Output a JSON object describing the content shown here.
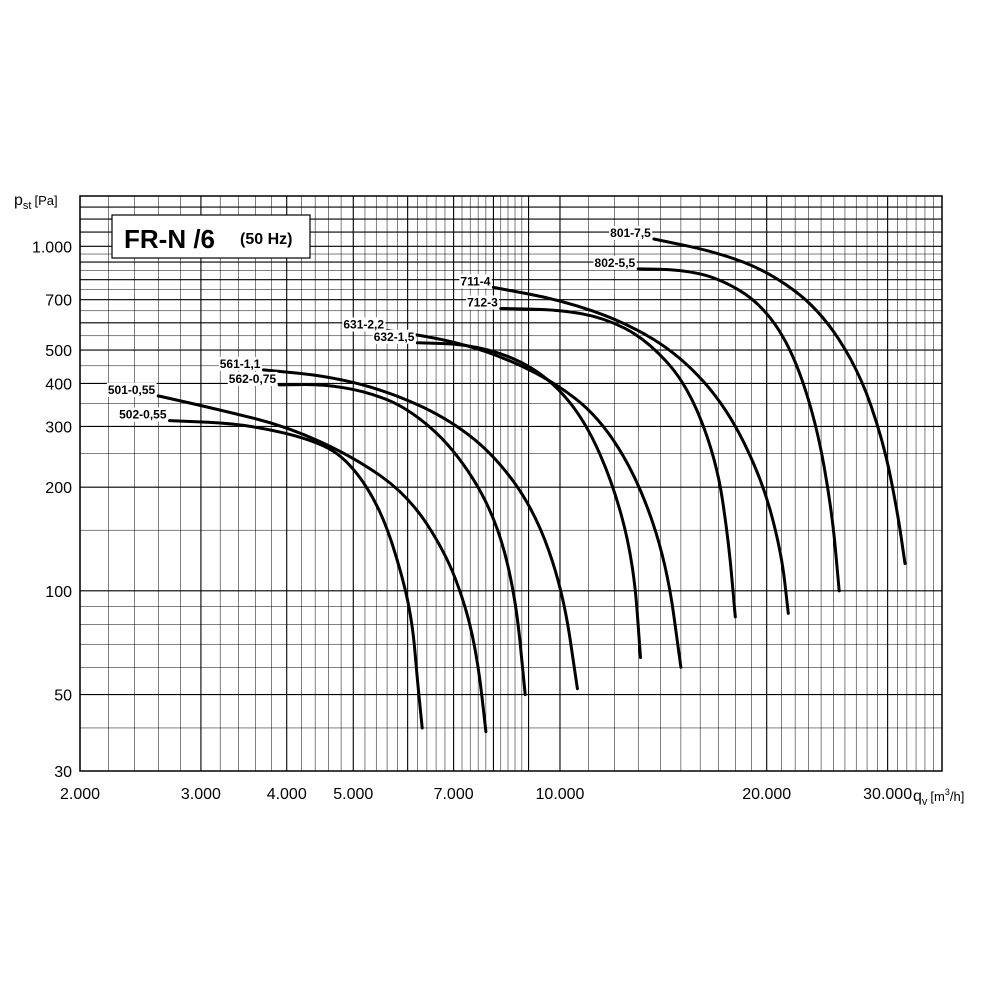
{
  "chart_data": {
    "type": "line",
    "title": "FR-N /6",
    "subtitle": "(50 Hz)",
    "ylabel_main": "p",
    "ylabel_sub": "st",
    "ylabel_unit": "[Pa]",
    "xlabel_main": "q",
    "xlabel_sub": "v",
    "xlabel_unit_pre": "[m",
    "xlabel_unit_sup": "3",
    "xlabel_unit_post": "/h]",
    "xscale": "log",
    "yscale": "log",
    "xlim": [
      2000,
      36000
    ],
    "ylim": [
      30,
      1400
    ],
    "grid": true,
    "xticks": [
      {
        "value": 2000,
        "label": "2.000"
      },
      {
        "value": 3000,
        "label": "3.000"
      },
      {
        "value": 4000,
        "label": "4.000"
      },
      {
        "value": 5000,
        "label": "5.000"
      },
      {
        "value": 7000,
        "label": "7.000"
      },
      {
        "value": 10000,
        "label": "10.000"
      },
      {
        "value": 20000,
        "label": "20.000"
      },
      {
        "value": 30000,
        "label": "30.000"
      }
    ],
    "yticks": [
      {
        "value": 30,
        "label": "30"
      },
      {
        "value": 50,
        "label": "50"
      },
      {
        "value": 100,
        "label": "100"
      },
      {
        "value": 200,
        "label": "200"
      },
      {
        "value": 300,
        "label": "300"
      },
      {
        "value": 400,
        "label": "400"
      },
      {
        "value": 500,
        "label": "500"
      },
      {
        "value": 700,
        "label": "700"
      },
      {
        "value": 1000,
        "label": "1.000"
      }
    ],
    "series": [
      {
        "name": "502-0,55",
        "x": [
          2700,
          3500,
          4500,
          5000,
          5500,
          5900,
          6100,
          6200,
          6300
        ],
        "y": [
          312,
          305,
          270,
          230,
          170,
          110,
          80,
          55,
          40
        ]
      },
      {
        "name": "501-0,55",
        "x": [
          2600,
          3200,
          4000,
          5000,
          6000,
          6800,
          7300,
          7600,
          7800
        ],
        "y": [
          368,
          335,
          300,
          245,
          190,
          130,
          90,
          62,
          39
        ]
      },
      {
        "name": "562-0,75",
        "x": [
          3900,
          4500,
          5200,
          6000,
          7000,
          8000,
          8600,
          8900
        ],
        "y": [
          396,
          398,
          380,
          340,
          260,
          170,
          100,
          50
        ]
      },
      {
        "name": "561-1,1",
        "x": [
          3700,
          4600,
          5600,
          6800,
          8000,
          9200,
          10100,
          10600
        ],
        "y": [
          438,
          420,
          380,
          320,
          250,
          170,
          100,
          52
        ]
      },
      {
        "name": "632-1,5",
        "x": [
          6200,
          7300,
          8500,
          9700,
          10900,
          12000,
          12800,
          13100
        ],
        "y": [
          525,
          520,
          480,
          410,
          310,
          200,
          120,
          64
        ]
      },
      {
        "name": "631-2,2",
        "x": [
          5600,
          6700,
          8000,
          9700,
          11400,
          13000,
          14300,
          15000
        ],
        "y": [
          570,
          540,
          490,
          410,
          320,
          210,
          120,
          60
        ]
      },
      {
        "name": "712-3",
        "x": [
          8200,
          10000,
          11600,
          13300,
          15300,
          16900,
          17600,
          18000
        ],
        "y": [
          660,
          655,
          620,
          540,
          400,
          240,
          140,
          84
        ]
      },
      {
        "name": "711-4",
        "x": [
          8000,
          10000,
          12500,
          15000,
          17500,
          19700,
          21000,
          21500
        ],
        "y": [
          760,
          700,
          600,
          480,
          340,
          210,
          130,
          86
        ]
      },
      {
        "name": "802-5,5",
        "x": [
          13000,
          15000,
          17000,
          19500,
          21700,
          23600,
          24900,
          25500
        ],
        "y": [
          860,
          855,
          810,
          690,
          510,
          310,
          170,
          100
        ]
      },
      {
        "name": "801-7,5",
        "x": [
          13700,
          17000,
          20200,
          23800,
          27200,
          29600,
          31000,
          31800
        ],
        "y": [
          1050,
          960,
          840,
          660,
          440,
          270,
          170,
          120
        ]
      }
    ]
  }
}
